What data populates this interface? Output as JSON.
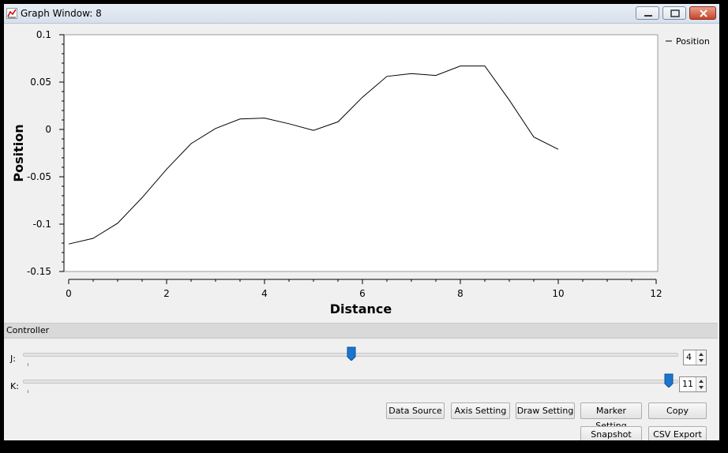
{
  "window": {
    "title": "Graph Window: 8"
  },
  "legend": {
    "entries": [
      "Position"
    ]
  },
  "chart_data": {
    "type": "line",
    "title": "",
    "xlabel": "Distance",
    "ylabel": "Position",
    "xlim": [
      0,
      12
    ],
    "ylim": [
      -0.15,
      0.1
    ],
    "x_ticks": [
      0,
      2,
      4,
      6,
      8,
      10,
      12
    ],
    "x_tick_labels": [
      "0",
      "2",
      "4",
      "6",
      "8",
      "10",
      "12"
    ],
    "y_ticks": [
      0.1,
      0.05,
      0,
      -0.05,
      -0.1,
      -0.15
    ],
    "y_tick_labels": [
      "0.1",
      "0.05",
      "0",
      "-0.05",
      "-0.1",
      "-0.15"
    ],
    "grid": false,
    "legend_position": "top-right",
    "series": [
      {
        "name": "Position",
        "color": "#000000",
        "x": [
          0,
          0.5,
          1,
          1.5,
          2,
          2.5,
          3,
          3.5,
          4,
          4.5,
          5,
          5.5,
          6,
          6.5,
          7,
          7.5,
          8,
          8.5,
          9,
          9.5,
          10
        ],
        "y": [
          -0.121,
          -0.115,
          -0.099,
          -0.072,
          -0.042,
          -0.015,
          0.001,
          0.011,
          0.012,
          0.006,
          -0.001,
          0.008,
          0.034,
          0.056,
          0.059,
          0.057,
          0.067,
          0.067,
          0.031,
          -0.008,
          -0.021
        ]
      }
    ]
  },
  "controller": {
    "label": "Controller",
    "sliders": [
      {
        "label": "J:",
        "value": "4",
        "fraction": 0.5
      },
      {
        "label": "K:",
        "value": "11",
        "fraction": 1.0
      }
    ]
  },
  "buttons": {
    "data_source": "Data Source",
    "axis_setting": "Axis Setting",
    "draw_setting": "Draw Setting",
    "marker_setting": "Marker Setting",
    "copy": "Copy",
    "snapshot": "Snapshot",
    "csv_export": "CSV Export"
  }
}
